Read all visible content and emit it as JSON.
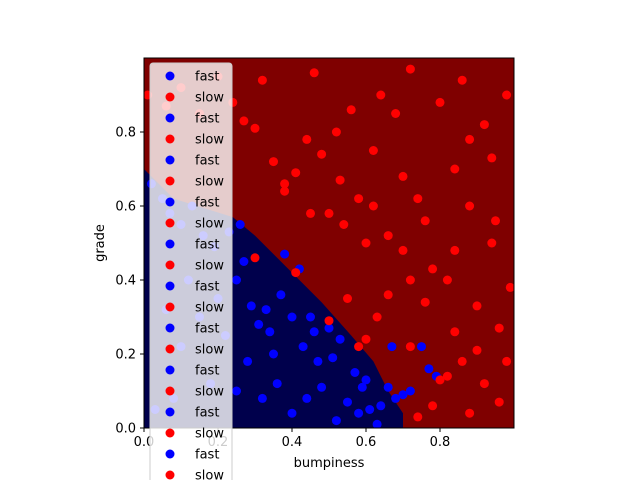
{
  "chart_data": {
    "type": "scatter",
    "title": "",
    "xlabel": "bumpiness",
    "ylabel": "grade",
    "xlim": [
      0.0,
      1.0
    ],
    "ylim": [
      0.0,
      1.0
    ],
    "xticks": [
      "0.0",
      "0.2",
      "0.4",
      "0.6",
      "0.8"
    ],
    "yticks": [
      "0.0",
      "0.2",
      "0.4",
      "0.6",
      "0.8"
    ],
    "xtick_values": [
      0.0,
      0.2,
      0.4,
      0.6,
      0.8
    ],
    "ytick_values": [
      0.0,
      0.2,
      0.4,
      0.6,
      0.8
    ],
    "grid": false,
    "legend_placement": "upper-left",
    "legend_entries": [
      {
        "label": "fast",
        "color": "#0000ff"
      },
      {
        "label": "slow",
        "color": "#ff0000"
      },
      {
        "label": "fast",
        "color": "#0000ff"
      },
      {
        "label": "slow",
        "color": "#ff0000"
      },
      {
        "label": "fast",
        "color": "#0000ff"
      },
      {
        "label": "slow",
        "color": "#ff0000"
      },
      {
        "label": "fast",
        "color": "#0000ff"
      },
      {
        "label": "slow",
        "color": "#ff0000"
      },
      {
        "label": "fast",
        "color": "#0000ff"
      },
      {
        "label": "slow",
        "color": "#ff0000"
      },
      {
        "label": "fast",
        "color": "#0000ff"
      },
      {
        "label": "slow",
        "color": "#ff0000"
      },
      {
        "label": "fast",
        "color": "#0000ff"
      },
      {
        "label": "slow",
        "color": "#ff0000"
      },
      {
        "label": "fast",
        "color": "#0000ff"
      },
      {
        "label": "slow",
        "color": "#ff0000"
      },
      {
        "label": "fast",
        "color": "#0000ff"
      },
      {
        "label": "slow",
        "color": "#ff0000"
      },
      {
        "label": "fast",
        "color": "#0000ff"
      },
      {
        "label": "slow",
        "color": "#ff0000"
      }
    ],
    "decision_regions": {
      "fast_region_color": "#00004c",
      "slow_region_color": "#7f0000",
      "fast_region_boundary": [
        [
          0.0,
          0.7
        ],
        [
          0.08,
          0.62
        ],
        [
          0.24,
          0.57
        ],
        [
          0.3,
          0.52
        ],
        [
          0.4,
          0.42
        ],
        [
          0.48,
          0.34
        ],
        [
          0.56,
          0.25
        ],
        [
          0.62,
          0.18
        ],
        [
          0.64,
          0.14
        ],
        [
          0.66,
          0.1
        ],
        [
          0.68,
          0.07
        ],
        [
          0.7,
          0.04
        ],
        [
          0.7,
          0.0
        ]
      ]
    },
    "series": [
      {
        "name": "fast",
        "color": "#0000ff",
        "points": [
          [
            0.02,
            0.66
          ],
          [
            0.05,
            0.62
          ],
          [
            0.07,
            0.58
          ],
          [
            0.1,
            0.55
          ],
          [
            0.13,
            0.6
          ],
          [
            0.16,
            0.52
          ],
          [
            0.19,
            0.49
          ],
          [
            0.23,
            0.53
          ],
          [
            0.25,
            0.4
          ],
          [
            0.27,
            0.45
          ],
          [
            0.29,
            0.33
          ],
          [
            0.31,
            0.28
          ],
          [
            0.33,
            0.32
          ],
          [
            0.35,
            0.2
          ],
          [
            0.37,
            0.36
          ],
          [
            0.38,
            0.47
          ],
          [
            0.4,
            0.3
          ],
          [
            0.42,
            0.43
          ],
          [
            0.43,
            0.22
          ],
          [
            0.45,
            0.3
          ],
          [
            0.47,
            0.18
          ],
          [
            0.48,
            0.11
          ],
          [
            0.5,
            0.27
          ],
          [
            0.51,
            0.19
          ],
          [
            0.53,
            0.24
          ],
          [
            0.55,
            0.07
          ],
          [
            0.57,
            0.15
          ],
          [
            0.59,
            0.11
          ],
          [
            0.61,
            0.05
          ],
          [
            0.63,
            0.01
          ],
          [
            0.64,
            0.06
          ],
          [
            0.66,
            0.11
          ],
          [
            0.67,
            0.22
          ],
          [
            0.68,
            0.08
          ],
          [
            0.7,
            0.09
          ],
          [
            0.72,
            0.1
          ],
          [
            0.75,
            0.22
          ],
          [
            0.77,
            0.16
          ],
          [
            0.79,
            0.14
          ],
          [
            0.26,
            0.55
          ],
          [
            0.2,
            0.35
          ],
          [
            0.22,
            0.25
          ],
          [
            0.28,
            0.18
          ],
          [
            0.32,
            0.08
          ],
          [
            0.36,
            0.12
          ],
          [
            0.4,
            0.04
          ],
          [
            0.44,
            0.08
          ],
          [
            0.52,
            0.02
          ],
          [
            0.58,
            0.04
          ],
          [
            0.12,
            0.4
          ],
          [
            0.15,
            0.3
          ],
          [
            0.18,
            0.12
          ],
          [
            0.1,
            0.22
          ],
          [
            0.06,
            0.32
          ],
          [
            0.03,
            0.05
          ],
          [
            0.08,
            0.08
          ],
          [
            0.25,
            0.1
          ],
          [
            0.34,
            0.26
          ],
          [
            0.46,
            0.26
          ],
          [
            0.6,
            0.13
          ]
        ]
      },
      {
        "name": "slow",
        "color": "#ff0000",
        "points": [
          [
            0.01,
            0.9
          ],
          [
            0.06,
            0.87
          ],
          [
            0.1,
            0.92
          ],
          [
            0.15,
            0.85
          ],
          [
            0.2,
            0.95
          ],
          [
            0.24,
            0.88
          ],
          [
            0.27,
            0.83
          ],
          [
            0.3,
            0.81
          ],
          [
            0.32,
            0.94
          ],
          [
            0.35,
            0.72
          ],
          [
            0.38,
            0.64
          ],
          [
            0.41,
            0.69
          ],
          [
            0.44,
            0.78
          ],
          [
            0.46,
            0.96
          ],
          [
            0.48,
            0.74
          ],
          [
            0.5,
            0.58
          ],
          [
            0.52,
            0.8
          ],
          [
            0.54,
            0.55
          ],
          [
            0.56,
            0.86
          ],
          [
            0.58,
            0.62
          ],
          [
            0.6,
            0.5
          ],
          [
            0.62,
            0.75
          ],
          [
            0.64,
            0.9
          ],
          [
            0.66,
            0.52
          ],
          [
            0.68,
            0.85
          ],
          [
            0.7,
            0.48
          ],
          [
            0.72,
            0.97
          ],
          [
            0.74,
            0.62
          ],
          [
            0.76,
            0.56
          ],
          [
            0.78,
            0.43
          ],
          [
            0.8,
            0.88
          ],
          [
            0.82,
            0.4
          ],
          [
            0.84,
            0.7
          ],
          [
            0.86,
            0.94
          ],
          [
            0.88,
            0.6
          ],
          [
            0.9,
            0.33
          ],
          [
            0.92,
            0.82
          ],
          [
            0.94,
            0.5
          ],
          [
            0.96,
            0.27
          ],
          [
            0.98,
            0.9
          ],
          [
            0.3,
            0.46
          ],
          [
            0.41,
            0.42
          ],
          [
            0.5,
            0.29
          ],
          [
            0.55,
            0.35
          ],
          [
            0.58,
            0.22
          ],
          [
            0.6,
            0.24
          ],
          [
            0.63,
            0.3
          ],
          [
            0.72,
            0.22
          ],
          [
            0.76,
            0.34
          ],
          [
            0.8,
            0.13
          ],
          [
            0.84,
            0.26
          ],
          [
            0.88,
            0.04
          ],
          [
            0.92,
            0.12
          ],
          [
            0.96,
            0.07
          ],
          [
            0.86,
            0.18
          ],
          [
            0.9,
            0.21
          ],
          [
            0.82,
            0.14
          ],
          [
            0.78,
            0.06
          ],
          [
            0.74,
            0.03
          ],
          [
            0.98,
            0.18
          ],
          [
            0.38,
            0.66
          ],
          [
            0.45,
            0.58
          ],
          [
            0.53,
            0.67
          ],
          [
            0.62,
            0.6
          ],
          [
            0.7,
            0.68
          ],
          [
            0.88,
            0.78
          ],
          [
            0.94,
            0.73
          ],
          [
            0.66,
            0.36
          ],
          [
            0.72,
            0.4
          ],
          [
            0.84,
            0.48
          ],
          [
            0.95,
            0.56
          ],
          [
            0.99,
            0.38
          ]
        ]
      }
    ]
  }
}
